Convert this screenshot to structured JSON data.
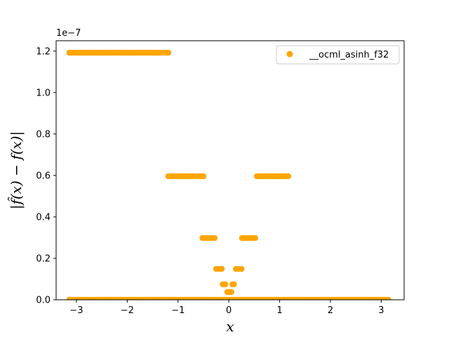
{
  "chart_data": {
    "type": "scatter",
    "title": "",
    "xlabel": "x",
    "ylabel": "|f̂(x) − f(x)|",
    "y_scale_label": "1e−7",
    "xlim": [
      -3.4,
      3.45
    ],
    "ylim": [
      0,
      1.25e-07
    ],
    "x_ticks": [
      -3,
      -2,
      -1,
      0,
      1,
      2,
      3
    ],
    "x_tick_labels": [
      "−3",
      "−2",
      "−1",
      "0",
      "1",
      "2",
      "3"
    ],
    "y_ticks": [
      0,
      2e-08,
      4e-08,
      6e-08,
      8e-08,
      1e-07,
      1.2e-07
    ],
    "y_tick_labels": [
      "0.0",
      "0.2",
      "0.4",
      "0.6",
      "0.8",
      "1.0",
      "1.2"
    ],
    "grid": false,
    "legend_position": "upper-right",
    "series": [
      {
        "name": "__ocml_asinh_f32",
        "color": "#ffa500",
        "marker": "circle",
        "segments": [
          {
            "x_start": -3.14,
            "x_end": 3.14,
            "y": 0
          },
          {
            "x_start": -3.14,
            "x_end": -1.19,
            "y": 1.192e-07
          },
          {
            "x_start": -1.19,
            "x_end": -0.5,
            "y": 5.96e-08
          },
          {
            "x_start": 0.55,
            "x_end": 1.17,
            "y": 5.96e-08
          },
          {
            "x_start": -0.52,
            "x_end": -0.28,
            "y": 2.98e-08
          },
          {
            "x_start": 0.26,
            "x_end": 0.52,
            "y": 2.98e-08
          },
          {
            "x_start": -0.25,
            "x_end": -0.14,
            "y": 1.49e-08
          },
          {
            "x_start": 0.14,
            "x_end": 0.25,
            "y": 1.49e-08
          },
          {
            "x_start": -0.12,
            "x_end": -0.07,
            "y": 7.45e-09
          },
          {
            "x_start": 0.07,
            "x_end": 0.1,
            "y": 7.45e-09
          },
          {
            "x_start": -0.03,
            "x_end": 0.05,
            "y": 3.73e-09
          }
        ]
      }
    ]
  }
}
